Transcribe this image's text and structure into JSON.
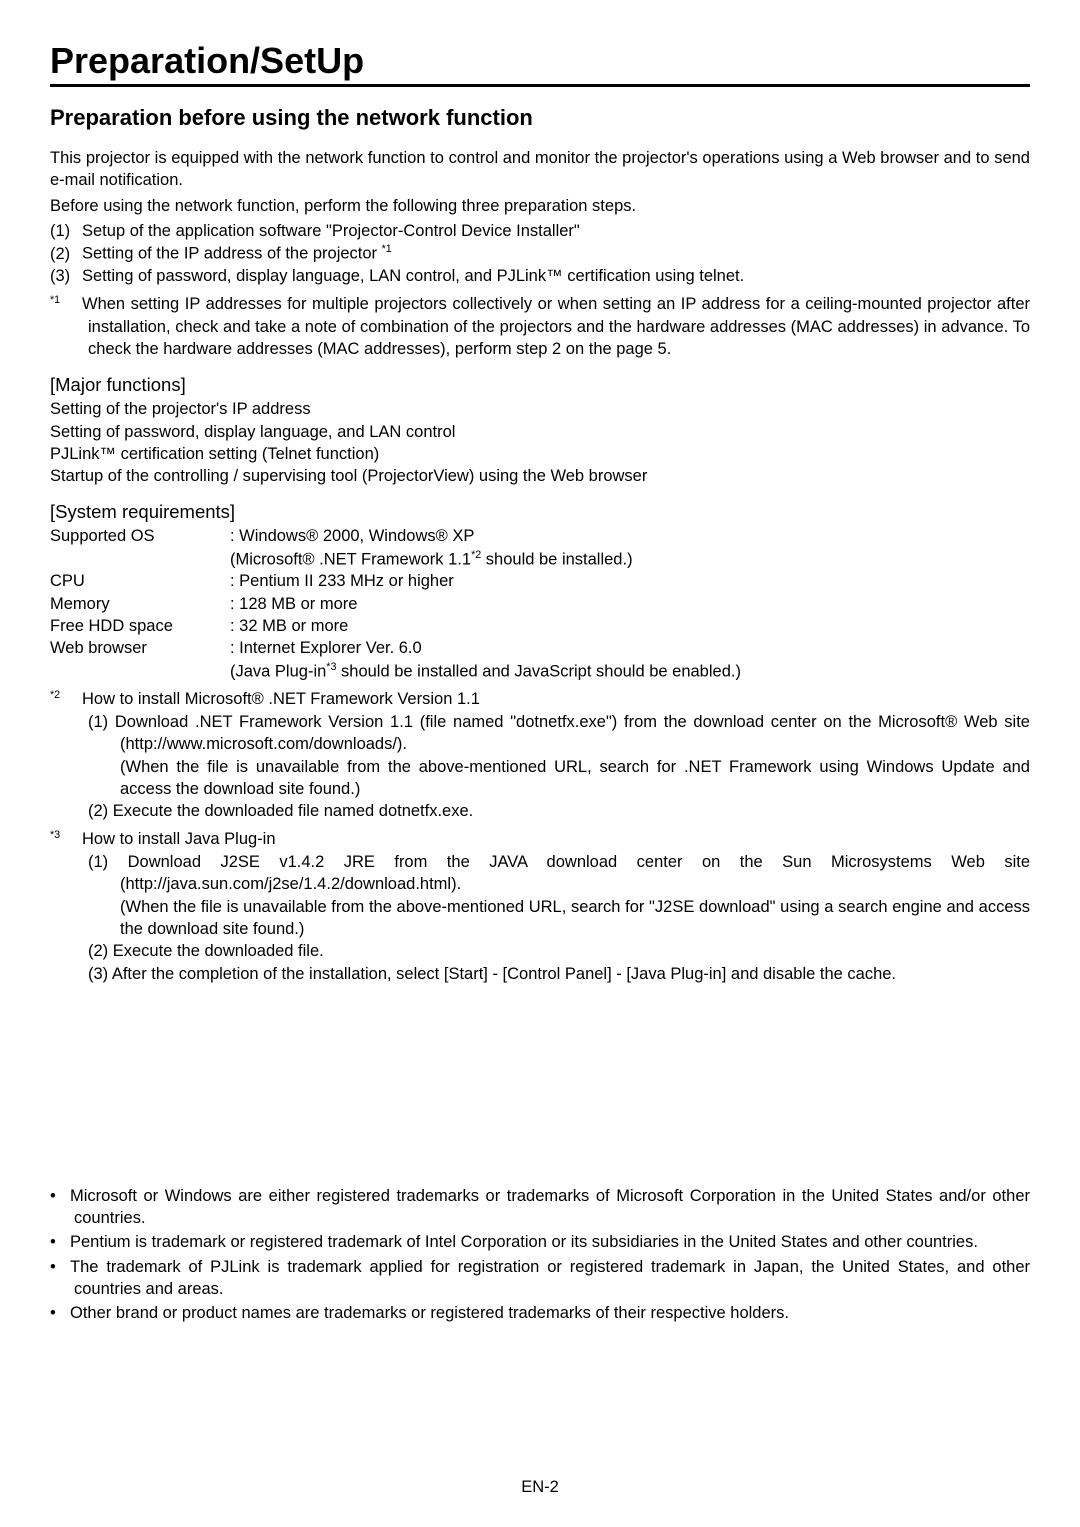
{
  "title": "Preparation/SetUp",
  "subtitle": "Preparation before using the network function",
  "intro1": "This projector is equipped with the network function to control and monitor the projector's operations using a Web browser and to send e-mail notification.",
  "intro2": "Before using the network function, perform the following three preparation steps.",
  "steps": {
    "s1_num": "(1)",
    "s1": "Setup of the application software \"Projector-Control Device Installer\"",
    "s2_num": "(2)",
    "s2a": "Setting of the IP address of the projector ",
    "s2_sup": "*1",
    "s3_num": "(3)",
    "s3": "Setting of password, display language, LAN control, and PJLink™ certification using telnet."
  },
  "fn1_sup": "*1",
  "fn1": "When setting IP addresses for multiple projectors collectively or when setting an IP address for a ceiling-mounted projector after installation, check and take a note of combination of the projectors and the hardware addresses (MAC addresses) in advance. To check the hardware addresses (MAC addresses), perform step 2 on the page 5.",
  "major_head": "[Major functions]",
  "major": {
    "m1": "Setting of the projector's IP address",
    "m2": "Setting of password, display language, and LAN control",
    "m3": "PJLink™ certification setting (Telnet function)",
    "m4": "Startup of the controlling / supervising tool (ProjectorView) using the Web browser"
  },
  "sys_head": "[System requirements]",
  "sys": {
    "os_label": "Supported OS",
    "os_val1": ": Windows® 2000, Windows® XP",
    "os_val2a": "  (Microsoft® .NET Framework 1.1",
    "os_val2_sup": "*2",
    "os_val2b": " should be installed.)",
    "cpu_label": "CPU",
    "cpu_val": ": Pentium II 233 MHz or higher",
    "mem_label": "Memory",
    "mem_val": ": 128 MB or more",
    "hdd_label": "Free HDD space",
    "hdd_val": ": 32 MB or more",
    "web_label": "Web browser",
    "web_val1": ": Internet Explorer Ver. 6.0",
    "web_val2a": "  (Java Plug-in",
    "web_val2_sup": "*3",
    "web_val2b": " should be installed and JavaScript should be enabled.)"
  },
  "fn2_sup": "*2",
  "fn2_head": "How to install Microsoft® .NET Framework Version 1.1",
  "fn2_1a": "(1) Download .NET Framework Version 1.1 (file named \"dotnetfx.exe\") from the download center on the Microsoft® Web site (http://www.microsoft.com/downloads/).",
  "fn2_1b": "(When the file is unavailable from the above-mentioned URL, search for .NET Framework using Windows Update and access the download site found.)",
  "fn2_2": "(2) Execute the downloaded file named dotnetfx.exe.",
  "fn3_sup": "*3",
  "fn3_head": "How to install Java Plug-in",
  "fn3_1a": "(1) Download J2SE v1.4.2 JRE from the JAVA download center on the Sun Microsystems Web site (http://java.sun.com/j2se/1.4.2/download.html).",
  "fn3_1b": "(When the file is unavailable from the above-mentioned URL, search for \"J2SE download\" using a search engine and access the download site found.)",
  "fn3_2": "(2) Execute the downloaded file.",
  "fn3_3": "(3) After the completion of the installation, select [Start] - [Control Panel] - [Java Plug-in] and disable the cache.",
  "trademarks": {
    "t1": "Microsoft or Windows are either registered trademarks or trademarks of Microsoft Corporation in the United States and/or other countries.",
    "t2": "Pentium is trademark or registered trademark of Intel Corporation or its subsidiaries in the United States and other countries.",
    "t3": "The trademark of PJLink is trademark applied for registration or registered trademark in Japan, the United States, and other countries and areas.",
    "t4": "Other brand or product names are trademarks or registered trademarks of their respective holders."
  },
  "page_num": "EN-2"
}
